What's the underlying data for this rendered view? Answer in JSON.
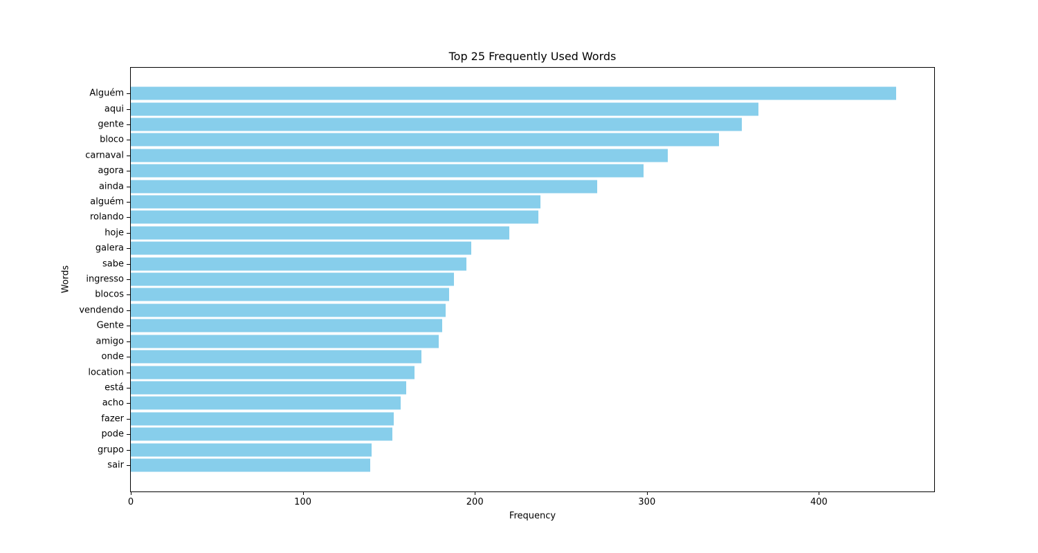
{
  "figure": {
    "background": "#ffffff",
    "frame_color": "#000000"
  },
  "chart_data": {
    "type": "bar",
    "orientation": "horizontal",
    "title": "Top 25 Frequently Used Words",
    "xlabel": "Frequency",
    "ylabel": "Words",
    "categories": [
      "Alguém",
      "aqui",
      "gente",
      "bloco",
      "carnaval",
      "agora",
      "ainda",
      "alguém",
      "rolando",
      "hoje",
      "galera",
      "sabe",
      "ingresso",
      "blocos",
      "vendendo",
      "Gente",
      "amigo",
      "onde",
      "location",
      "está",
      "acho",
      "fazer",
      "pode",
      "grupo",
      "sair"
    ],
    "values": [
      445,
      365,
      355,
      342,
      312,
      298,
      271,
      238,
      237,
      220,
      198,
      195,
      188,
      185,
      183,
      181,
      179,
      169,
      165,
      160,
      157,
      153,
      152,
      140,
      139
    ],
    "bar_color": "#87CEEB",
    "xlim": [
      0,
      467
    ],
    "x_ticks": [
      0,
      100,
      200,
      300,
      400
    ],
    "grid": false,
    "legend": null
  }
}
